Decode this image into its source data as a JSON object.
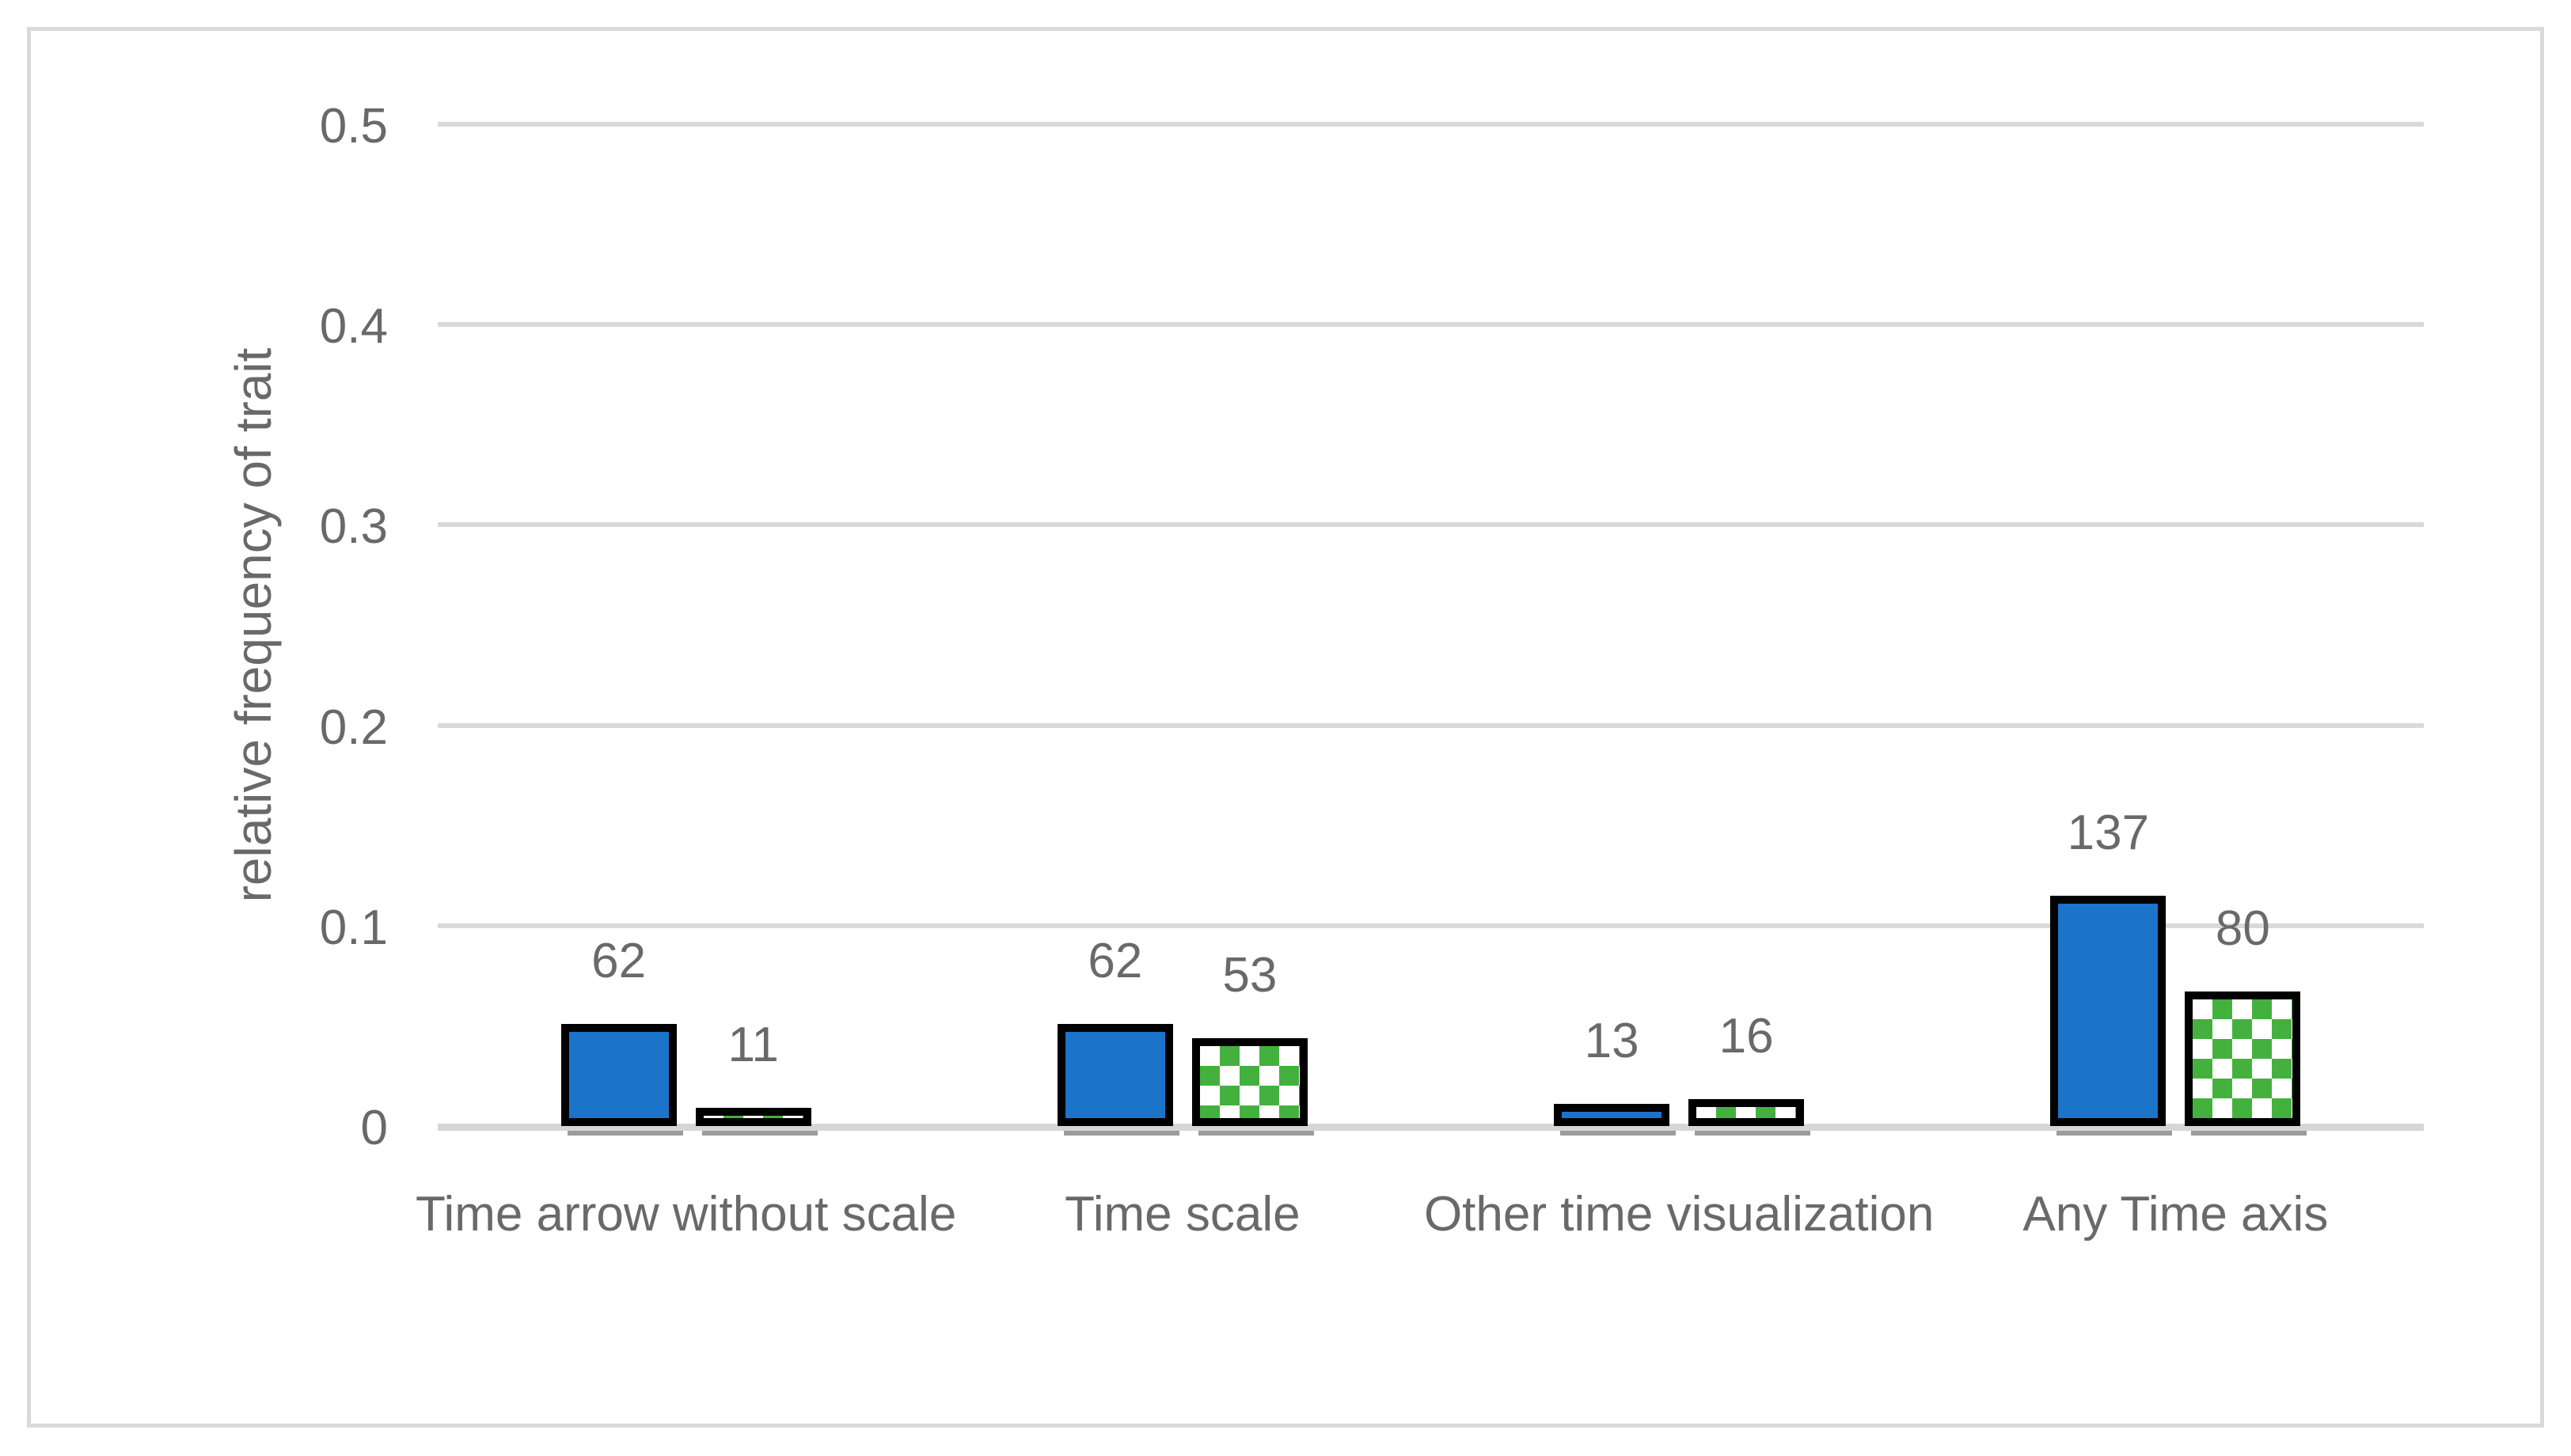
{
  "chart_data": {
    "type": "bar",
    "title": "",
    "xlabel": "",
    "ylabel": "relative frequency of trait",
    "ylim": [
      0,
      0.5
    ],
    "y_ticks": [
      "0",
      "0.1",
      "0.2",
      "0.3",
      "0.4",
      "0.5"
    ],
    "grid": true,
    "legend_position": "none",
    "categories": [
      "Time arrow without scale",
      "Time scale",
      "Other time visualization",
      "Any Time axis"
    ],
    "series": [
      {
        "name": "blue-solid",
        "pattern": "solid",
        "color": "#1b74c9",
        "outline_color": "#000000",
        "values": [
          0.051,
          0.051,
          0.011,
          0.115
        ],
        "labels": [
          "62",
          "62",
          "13",
          "137"
        ]
      },
      {
        "name": "green-checkered",
        "pattern": "checkerboard",
        "color": "#44b13e",
        "outline_color": "#000000",
        "values": [
          0.009,
          0.044,
          0.0135,
          0.067
        ],
        "labels": [
          "11",
          "53",
          "16",
          "80"
        ]
      }
    ],
    "colors": {
      "gridline": "#d9d9d9",
      "axis_line": "#d6d6d6",
      "text": "#696969",
      "canvas_border": "#d9d9d9",
      "background": "#ffffff"
    }
  }
}
